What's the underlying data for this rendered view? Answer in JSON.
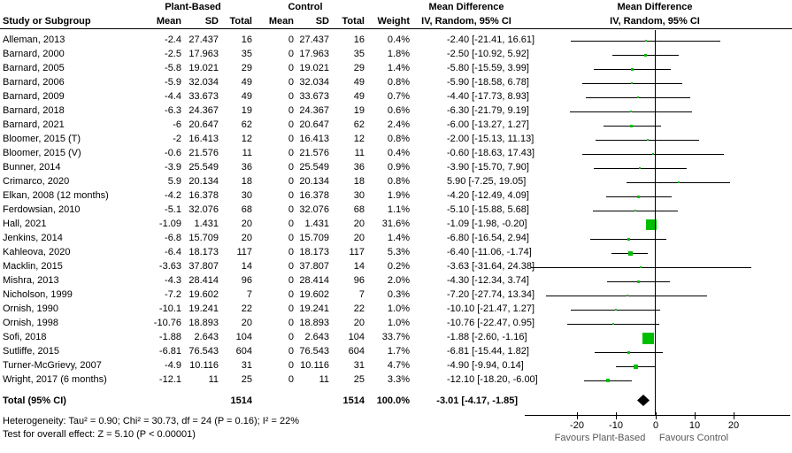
{
  "chart_data": {
    "type": "forest",
    "title_row": {
      "group1": "Plant-Based",
      "group2": "Control",
      "md_col": "Mean Difference",
      "md_plot": "Mean Difference"
    },
    "header": {
      "study": "Study or Subgroup",
      "mean": "Mean",
      "sd": "SD",
      "total": "Total",
      "weight": "Weight",
      "ci": "IV, Random, 95% CI",
      "ci_plot": "IV, Random, 95% CI"
    },
    "studies": [
      {
        "name": "Alleman, 2013",
        "mean1": "-2.4",
        "sd1": "27.437",
        "n1": "16",
        "mean2": "0",
        "sd2": "27.437",
        "n2": "16",
        "weight": "0.4%",
        "ci_text": "-2.40 [-21.41, 16.61]",
        "md": -2.4,
        "lo": -21.41,
        "hi": 16.61,
        "w": 0.4
      },
      {
        "name": "Barnard, 2000",
        "mean1": "-2.5",
        "sd1": "17.963",
        "n1": "35",
        "mean2": "0",
        "sd2": "17.963",
        "n2": "35",
        "weight": "1.8%",
        "ci_text": "-2.50 [-10.92, 5.92]",
        "md": -2.5,
        "lo": -10.92,
        "hi": 5.92,
        "w": 1.8
      },
      {
        "name": "Barnard, 2005",
        "mean1": "-5.8",
        "sd1": "19.021",
        "n1": "29",
        "mean2": "0",
        "sd2": "19.021",
        "n2": "29",
        "weight": "1.4%",
        "ci_text": "-5.80 [-15.59, 3.99]",
        "md": -5.8,
        "lo": -15.59,
        "hi": 3.99,
        "w": 1.4
      },
      {
        "name": "Barnard, 2006",
        "mean1": "-5.9",
        "sd1": "32.034",
        "n1": "49",
        "mean2": "0",
        "sd2": "32.034",
        "n2": "49",
        "weight": "0.8%",
        "ci_text": "-5.90 [-18.58, 6.78]",
        "md": -5.9,
        "lo": -18.58,
        "hi": 6.78,
        "w": 0.8
      },
      {
        "name": "Barnard, 2009",
        "mean1": "-4.4",
        "sd1": "33.673",
        "n1": "49",
        "mean2": "0",
        "sd2": "33.673",
        "n2": "49",
        "weight": "0.7%",
        "ci_text": "-4.40 [-17.73, 8.93]",
        "md": -4.4,
        "lo": -17.73,
        "hi": 8.93,
        "w": 0.7
      },
      {
        "name": "Barnard, 2018",
        "mean1": "-6.3",
        "sd1": "24.367",
        "n1": "19",
        "mean2": "0",
        "sd2": "24.367",
        "n2": "19",
        "weight": "0.6%",
        "ci_text": "-6.30 [-21.79, 9.19]",
        "md": -6.3,
        "lo": -21.79,
        "hi": 9.19,
        "w": 0.6
      },
      {
        "name": "Barnard, 2021",
        "mean1": "-6",
        "sd1": "20.647",
        "n1": "62",
        "mean2": "0",
        "sd2": "20.647",
        "n2": "62",
        "weight": "2.4%",
        "ci_text": "-6.00 [-13.27, 1.27]",
        "md": -6.0,
        "lo": -13.27,
        "hi": 1.27,
        "w": 2.4
      },
      {
        "name": "Bloomer, 2015 (T)",
        "mean1": "-2",
        "sd1": "16.413",
        "n1": "12",
        "mean2": "0",
        "sd2": "16.413",
        "n2": "12",
        "weight": "0.8%",
        "ci_text": "-2.00 [-15.13, 11.13]",
        "md": -2.0,
        "lo": -15.13,
        "hi": 11.13,
        "w": 0.8
      },
      {
        "name": "Bloomer, 2015 (V)",
        "mean1": "-0.6",
        "sd1": "21.576",
        "n1": "11",
        "mean2": "0",
        "sd2": "21.576",
        "n2": "11",
        "weight": "0.4%",
        "ci_text": "-0.60 [-18.63, 17.43]",
        "md": -0.6,
        "lo": -18.63,
        "hi": 17.43,
        "w": 0.4
      },
      {
        "name": "Bunner, 2014",
        "mean1": "-3.9",
        "sd1": "25.549",
        "n1": "36",
        "mean2": "0",
        "sd2": "25.549",
        "n2": "36",
        "weight": "0.9%",
        "ci_text": "-3.90 [-15.70, 7.90]",
        "md": -3.9,
        "lo": -15.7,
        "hi": 7.9,
        "w": 0.9
      },
      {
        "name": "Crimarco, 2020",
        "mean1": "5.9",
        "sd1": "20.134",
        "n1": "18",
        "mean2": "0",
        "sd2": "20.134",
        "n2": "18",
        "weight": "0.8%",
        "ci_text": "5.90 [-7.25, 19.05]",
        "md": 5.9,
        "lo": -7.25,
        "hi": 19.05,
        "w": 0.8
      },
      {
        "name": "Elkan, 2008 (12 months)",
        "mean1": "-4.2",
        "sd1": "16.378",
        "n1": "30",
        "mean2": "0",
        "sd2": "16.378",
        "n2": "30",
        "weight": "1.9%",
        "ci_text": "-4.20 [-12.49, 4.09]",
        "md": -4.2,
        "lo": -12.49,
        "hi": 4.09,
        "w": 1.9
      },
      {
        "name": "Ferdowsian, 2010",
        "mean1": "-5.1",
        "sd1": "32.076",
        "n1": "68",
        "mean2": "0",
        "sd2": "32.076",
        "n2": "68",
        "weight": "1.1%",
        "ci_text": "-5.10 [-15.88, 5.68]",
        "md": -5.1,
        "lo": -15.88,
        "hi": 5.68,
        "w": 1.1
      },
      {
        "name": "Hall, 2021",
        "mean1": "-1.09",
        "sd1": "1.431",
        "n1": "20",
        "mean2": "0",
        "sd2": "1.431",
        "n2": "20",
        "weight": "31.6%",
        "ci_text": "-1.09 [-1.98, -0.20]",
        "md": -1.09,
        "lo": -1.98,
        "hi": -0.2,
        "w": 31.6
      },
      {
        "name": "Jenkins, 2014",
        "mean1": "-6.8",
        "sd1": "15.709",
        "n1": "20",
        "mean2": "0",
        "sd2": "15.709",
        "n2": "20",
        "weight": "1.4%",
        "ci_text": "-6.80 [-16.54, 2.94]",
        "md": -6.8,
        "lo": -16.54,
        "hi": 2.94,
        "w": 1.4
      },
      {
        "name": "Kahleova, 2020",
        "mean1": "-6.4",
        "sd1": "18.173",
        "n1": "117",
        "mean2": "0",
        "sd2": "18.173",
        "n2": "117",
        "weight": "5.3%",
        "ci_text": "-6.40 [-11.06, -1.74]",
        "md": -6.4,
        "lo": -11.06,
        "hi": -1.74,
        "w": 5.3
      },
      {
        "name": "Macklin, 2015",
        "mean1": "-3.63",
        "sd1": "37.807",
        "n1": "14",
        "mean2": "0",
        "sd2": "37.807",
        "n2": "14",
        "weight": "0.2%",
        "ci_text": "-3.63 [-31.64, 24.38]",
        "md": -3.63,
        "lo": -31.64,
        "hi": 24.38,
        "w": 0.2
      },
      {
        "name": "Mishra, 2013",
        "mean1": "-4.3",
        "sd1": "28.414",
        "n1": "96",
        "mean2": "0",
        "sd2": "28.414",
        "n2": "96",
        "weight": "2.0%",
        "ci_text": "-4.30 [-12.34, 3.74]",
        "md": -4.3,
        "lo": -12.34,
        "hi": 3.74,
        "w": 2.0
      },
      {
        "name": "Nicholson, 1999",
        "mean1": "-7.2",
        "sd1": "19.602",
        "n1": "7",
        "mean2": "0",
        "sd2": "19.602",
        "n2": "7",
        "weight": "0.3%",
        "ci_text": "-7.20 [-27.74, 13.34]",
        "md": -7.2,
        "lo": -27.74,
        "hi": 13.34,
        "w": 0.3
      },
      {
        "name": "Ornish, 1990",
        "mean1": "-10.1",
        "sd1": "19.241",
        "n1": "22",
        "mean2": "0",
        "sd2": "19.241",
        "n2": "22",
        "weight": "1.0%",
        "ci_text": "-10.10 [-21.47, 1.27]",
        "md": -10.1,
        "lo": -21.47,
        "hi": 1.27,
        "w": 1.0
      },
      {
        "name": "Ornish, 1998",
        "mean1": "-10.76",
        "sd1": "18.893",
        "n1": "20",
        "mean2": "0",
        "sd2": "18.893",
        "n2": "20",
        "weight": "1.0%",
        "ci_text": "-10.76 [-22.47, 0.95]",
        "md": -10.76,
        "lo": -22.47,
        "hi": 0.95,
        "w": 1.0
      },
      {
        "name": "Sofi, 2018",
        "mean1": "-1.88",
        "sd1": "2.643",
        "n1": "104",
        "mean2": "0",
        "sd2": "2.643",
        "n2": "104",
        "weight": "33.7%",
        "ci_text": "-1.88 [-2.60, -1.16]",
        "md": -1.88,
        "lo": -2.6,
        "hi": -1.16,
        "w": 33.7
      },
      {
        "name": "Sutliffe, 2015",
        "mean1": "-6.81",
        "sd1": "76.543",
        "n1": "604",
        "mean2": "0",
        "sd2": "76.543",
        "n2": "604",
        "weight": "1.7%",
        "ci_text": "-6.81 [-15.44, 1.82]",
        "md": -6.81,
        "lo": -15.44,
        "hi": 1.82,
        "w": 1.7
      },
      {
        "name": "Turner-McGrievy, 2007",
        "mean1": "-4.9",
        "sd1": "10.116",
        "n1": "31",
        "mean2": "0",
        "sd2": "10.116",
        "n2": "31",
        "weight": "4.7%",
        "ci_text": "-4.90 [-9.94, 0.14]",
        "md": -4.9,
        "lo": -9.94,
        "hi": 0.14,
        "w": 4.7
      },
      {
        "name": "Wright, 2017 (6 months)",
        "mean1": "-12.1",
        "sd1": "11",
        "n1": "25",
        "mean2": "0",
        "sd2": "11",
        "n2": "25",
        "weight": "3.3%",
        "ci_text": "-12.10 [-18.20, -6.00]",
        "md": -12.1,
        "lo": -18.2,
        "hi": -6.0,
        "w": 3.3
      }
    ],
    "totals": {
      "label": "Total (95% CI)",
      "n1": "1514",
      "n2": "1514",
      "weight": "100.0%",
      "ci_text": "-3.01 [-4.17, -1.85]",
      "md": -3.01,
      "lo": -4.17,
      "hi": -1.85
    },
    "heterogeneity": "Heterogeneity: Tau² = 0.90; Chi² = 30.73, df = 24 (P = 0.16); I² = 22%",
    "overall_effect": "Test for overall effect: Z = 5.10 (P < 0.00001)",
    "axis": {
      "ticks": [
        -20,
        -10,
        0,
        10,
        20
      ],
      "xmin": -33,
      "xmax": 34,
      "favours_left": "Favours Plant-Based",
      "favours_right": "Favours Control"
    },
    "colors": {
      "marker_green": "#00bf00",
      "line_black": "#000000",
      "favours_gray": "#595959"
    }
  }
}
